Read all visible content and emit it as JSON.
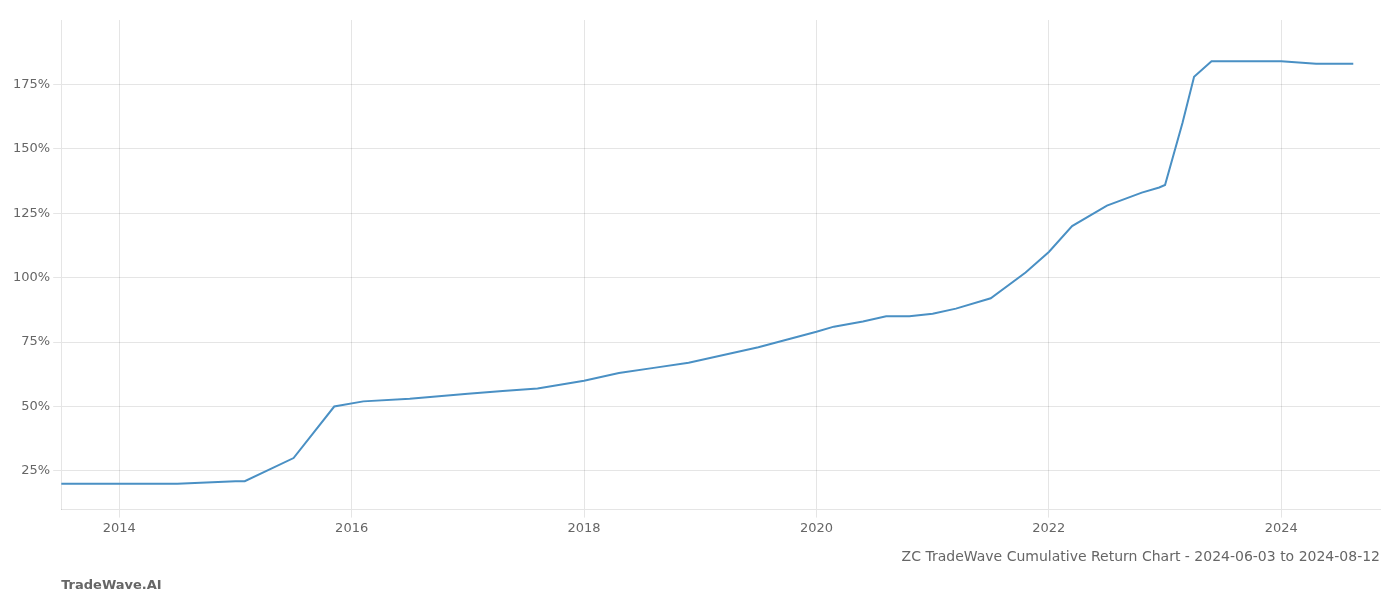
{
  "chart_data": {
    "type": "line",
    "title": "ZC TradeWave Cumulative Return Chart - 2024-06-03 to 2024-08-12",
    "annotations": [
      "TradeWave.AI"
    ],
    "x": [
      2013.5,
      2014.0,
      2014.5,
      2015.0,
      2015.08,
      2015.5,
      2015.85,
      2016.1,
      2016.5,
      2017.0,
      2017.3,
      2017.6,
      2018.0,
      2018.3,
      2018.6,
      2018.9,
      2019.2,
      2019.5,
      2019.75,
      2020.0,
      2020.15,
      2020.4,
      2020.6,
      2020.8,
      2021.0,
      2021.2,
      2021.5,
      2021.8,
      2022.0,
      2022.2,
      2022.5,
      2022.8,
      2022.95,
      2023.0,
      2023.15,
      2023.25,
      2023.4,
      2023.5,
      2024.0,
      2024.3,
      2024.62
    ],
    "values": [
      20,
      20,
      20,
      21,
      21,
      30,
      50,
      52,
      53,
      55,
      56,
      57,
      60,
      63,
      65,
      67,
      70,
      73,
      76,
      79,
      81,
      83,
      85,
      85,
      86,
      88,
      92,
      102,
      110,
      120,
      128,
      133,
      135,
      136,
      160,
      178,
      184,
      184,
      184,
      183,
      183
    ],
    "color": "#4a90c4",
    "xlim": [
      2013.5,
      2024.85
    ],
    "xticks": [
      2014,
      2016,
      2018,
      2020,
      2022,
      2024
    ],
    "ylim": [
      10,
      200
    ],
    "yticks": [
      {
        "value": 25,
        "label": "25%"
      },
      {
        "value": 50,
        "label": "50%"
      },
      {
        "value": 75,
        "label": "75%"
      },
      {
        "value": 100,
        "label": "100%"
      },
      {
        "value": 125,
        "label": "125%"
      },
      {
        "value": 150,
        "label": "150%"
      },
      {
        "value": 175,
        "label": "175%"
      }
    ],
    "grid": true
  }
}
